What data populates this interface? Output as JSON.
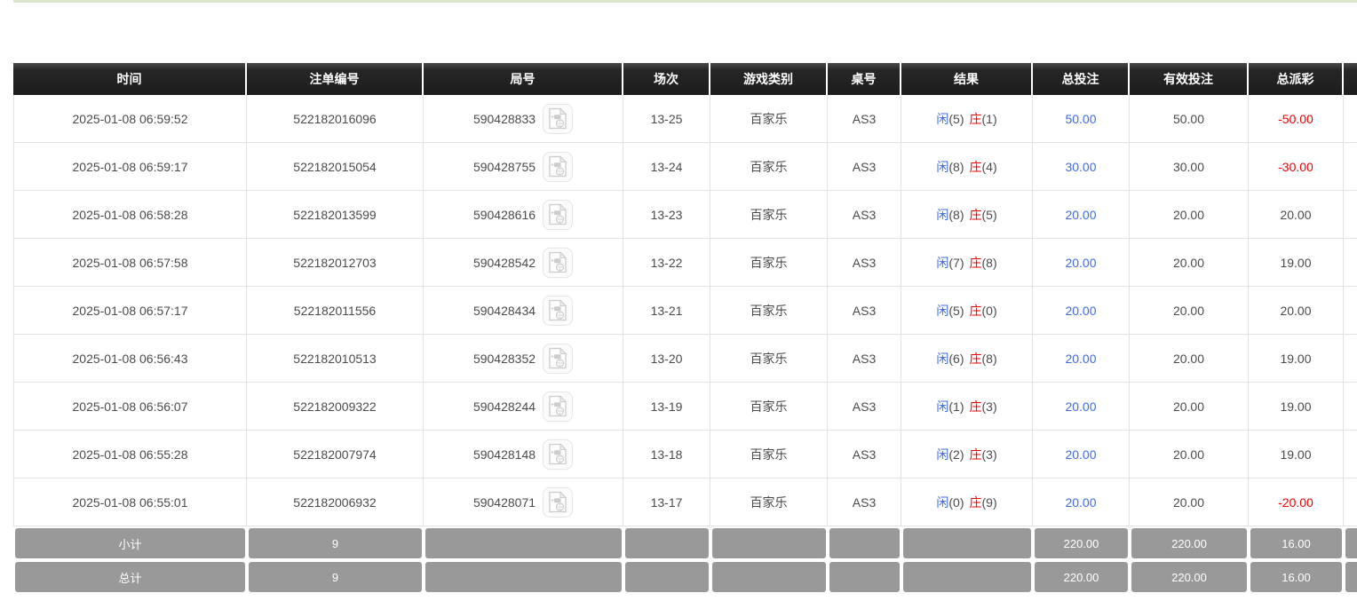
{
  "table": {
    "columns": [
      {
        "key": "time",
        "label": "时间"
      },
      {
        "key": "bet_no",
        "label": "注单编号"
      },
      {
        "key": "round_no",
        "label": "局号"
      },
      {
        "key": "session",
        "label": "场次"
      },
      {
        "key": "game_type",
        "label": "游戏类别"
      },
      {
        "key": "table_no",
        "label": "桌号"
      },
      {
        "key": "result",
        "label": "结果"
      },
      {
        "key": "total_bet",
        "label": "总投注"
      },
      {
        "key": "valid_bet",
        "label": "有效投注"
      },
      {
        "key": "total_payout",
        "label": "总派彩"
      },
      {
        "key": "extra",
        "label": ""
      }
    ],
    "rows": [
      {
        "time": "2025-01-08 06:59:52",
        "bet_no": "522182016096",
        "round_no": "590428833",
        "session": "13-25",
        "game_type": "百家乐",
        "table_no": "AS3",
        "result": {
          "p_label": "闲",
          "p_num": "(5)",
          "b_label": "庄",
          "b_num": "(1)"
        },
        "total_bet": "50.00",
        "valid_bet": "50.00",
        "total_payout": "-50.00"
      },
      {
        "time": "2025-01-08 06:59:17",
        "bet_no": "522182015054",
        "round_no": "590428755",
        "session": "13-24",
        "game_type": "百家乐",
        "table_no": "AS3",
        "result": {
          "p_label": "闲",
          "p_num": "(8)",
          "b_label": "庄",
          "b_num": "(4)"
        },
        "total_bet": "30.00",
        "valid_bet": "30.00",
        "total_payout": "-30.00"
      },
      {
        "time": "2025-01-08 06:58:28",
        "bet_no": "522182013599",
        "round_no": "590428616",
        "session": "13-23",
        "game_type": "百家乐",
        "table_no": "AS3",
        "result": {
          "p_label": "闲",
          "p_num": "(8)",
          "b_label": "庄",
          "b_num": "(5)"
        },
        "total_bet": "20.00",
        "valid_bet": "20.00",
        "total_payout": "20.00"
      },
      {
        "time": "2025-01-08 06:57:58",
        "bet_no": "522182012703",
        "round_no": "590428542",
        "session": "13-22",
        "game_type": "百家乐",
        "table_no": "AS3",
        "result": {
          "p_label": "闲",
          "p_num": "(7)",
          "b_label": "庄",
          "b_num": "(8)"
        },
        "total_bet": "20.00",
        "valid_bet": "20.00",
        "total_payout": "19.00"
      },
      {
        "time": "2025-01-08 06:57:17",
        "bet_no": "522182011556",
        "round_no": "590428434",
        "session": "13-21",
        "game_type": "百家乐",
        "table_no": "AS3",
        "result": {
          "p_label": "闲",
          "p_num": "(5)",
          "b_label": "庄",
          "b_num": "(0)"
        },
        "total_bet": "20.00",
        "valid_bet": "20.00",
        "total_payout": "20.00"
      },
      {
        "time": "2025-01-08 06:56:43",
        "bet_no": "522182010513",
        "round_no": "590428352",
        "session": "13-20",
        "game_type": "百家乐",
        "table_no": "AS3",
        "result": {
          "p_label": "闲",
          "p_num": "(6)",
          "b_label": "庄",
          "b_num": "(8)"
        },
        "total_bet": "20.00",
        "valid_bet": "20.00",
        "total_payout": "19.00"
      },
      {
        "time": "2025-01-08 06:56:07",
        "bet_no": "522182009322",
        "round_no": "590428244",
        "session": "13-19",
        "game_type": "百家乐",
        "table_no": "AS3",
        "result": {
          "p_label": "闲",
          "p_num": "(1)",
          "b_label": "庄",
          "b_num": "(3)"
        },
        "total_bet": "20.00",
        "valid_bet": "20.00",
        "total_payout": "19.00"
      },
      {
        "time": "2025-01-08 06:55:28",
        "bet_no": "522182007974",
        "round_no": "590428148",
        "session": "13-18",
        "game_type": "百家乐",
        "table_no": "AS3",
        "result": {
          "p_label": "闲",
          "p_num": "(2)",
          "b_label": "庄",
          "b_num": "(3)"
        },
        "total_bet": "20.00",
        "valid_bet": "20.00",
        "total_payout": "19.00"
      },
      {
        "time": "2025-01-08 06:55:01",
        "bet_no": "522182006932",
        "round_no": "590428071",
        "session": "13-17",
        "game_type": "百家乐",
        "table_no": "AS3",
        "result": {
          "p_label": "闲",
          "p_num": "(0)",
          "b_label": "庄",
          "b_num": "(9)"
        },
        "total_bet": "20.00",
        "valid_bet": "20.00",
        "total_payout": "-20.00"
      }
    ],
    "footer": [
      {
        "label": "小计",
        "count": "9",
        "total_bet": "220.00",
        "valid_bet": "220.00",
        "total_payout": "16.00"
      },
      {
        "label": "总计",
        "count": "9",
        "total_bet": "220.00",
        "valid_bet": "220.00",
        "total_payout": "16.00"
      }
    ],
    "icons": {
      "video_replay": "video-file-icon"
    },
    "colors": {
      "header_bg": "#1d1d1d",
      "header_text": "#ffffff",
      "footer_bg": "#999999",
      "link_blue": "#3e6be0",
      "loss_red": "#ee0000",
      "top_line_green": "#d9e8ca",
      "grid_border": "#e2e2e2"
    }
  }
}
